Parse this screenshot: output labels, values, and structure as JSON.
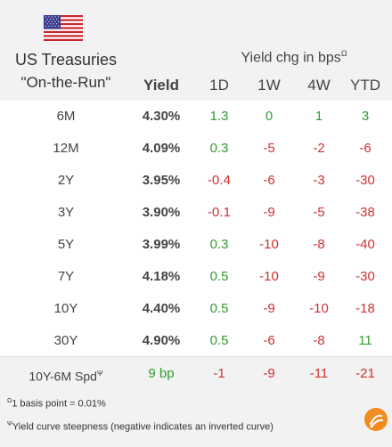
{
  "header": {
    "title_line1": "US Treasuries",
    "title_line2": "\"On-the-Run\"",
    "yield_col": "Yield",
    "yield_change_head": "Yield chg in bps",
    "yield_change_sup": "Ω",
    "cols": [
      "1D",
      "1W",
      "4W",
      "YTD"
    ]
  },
  "colors": {
    "positive": "#2e9e2e",
    "negative": "#d03030",
    "panel": "#f2f2f2"
  },
  "rows": [
    {
      "label": "6M",
      "yield": "4.30%",
      "d1": "1.3",
      "w1": "0",
      "w4": "1",
      "ytd": "3"
    },
    {
      "label": "12M",
      "yield": "4.09%",
      "d1": "0.3",
      "w1": "-5",
      "w4": "-2",
      "ytd": "-6"
    },
    {
      "label": "2Y",
      "yield": "3.95%",
      "d1": "-0.4",
      "w1": "-6",
      "w4": "-3",
      "ytd": "-30"
    },
    {
      "label": "3Y",
      "yield": "3.90%",
      "d1": "-0.1",
      "w1": "-9",
      "w4": "-5",
      "ytd": "-38"
    },
    {
      "label": "5Y",
      "yield": "3.99%",
      "d1": "0.3",
      "w1": "-10",
      "w4": "-8",
      "ytd": "-40"
    },
    {
      "label": "7Y",
      "yield": "4.18%",
      "d1": "0.5",
      "w1": "-10",
      "w4": "-9",
      "ytd": "-30"
    },
    {
      "label": "10Y",
      "yield": "4.40%",
      "d1": "0.5",
      "w1": "-9",
      "w4": "-10",
      "ytd": "-18"
    },
    {
      "label": "30Y",
      "yield": "4.90%",
      "d1": "0.5",
      "w1": "-6",
      "w4": "-8",
      "ytd": "11"
    }
  ],
  "spread": {
    "label": "10Y-6M Spd",
    "label_sup": "Ψ",
    "value": "9 bp",
    "d1": "-1",
    "w1": "-9",
    "w4": "-11",
    "ytd": "-21"
  },
  "notes": {
    "n1_sup": "Ω",
    "n1": "1 basis point = 0.01%",
    "n2_sup": "Ψ",
    "n2": "Yield curve steepness (negative indicates an inverted curve)"
  },
  "icons": {
    "flag": "us-flag-icon",
    "logo": "brand-logo-icon"
  }
}
